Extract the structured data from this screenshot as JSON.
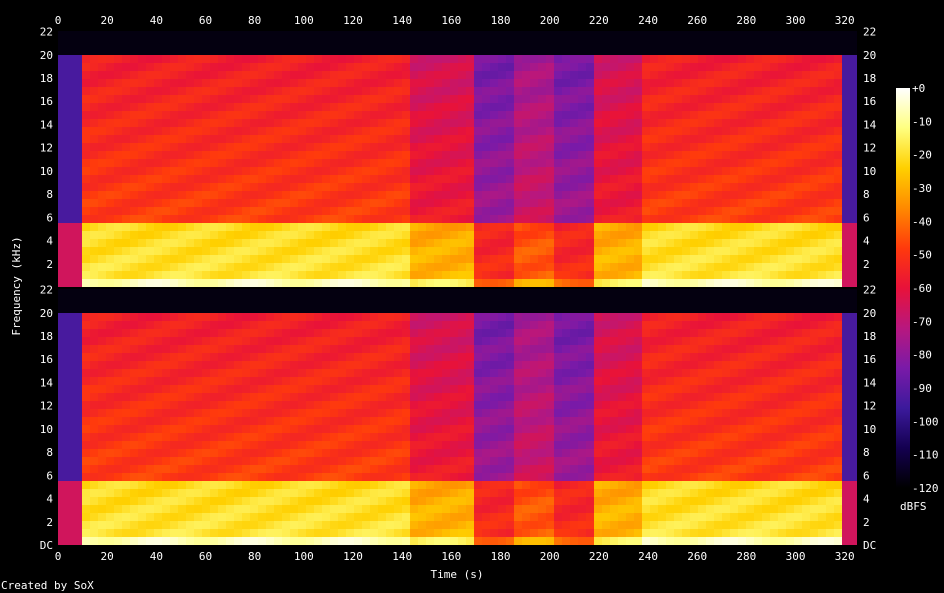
{
  "chart_data": {
    "type": "heatmap",
    "title": "",
    "xlabel": "Time (s)",
    "ylabel": "Frequency (kHz)",
    "x_ticks": [
      "0",
      "20",
      "40",
      "60",
      "80",
      "100",
      "120",
      "140",
      "160",
      "180",
      "200",
      "220",
      "240",
      "260",
      "280",
      "300",
      "320"
    ],
    "x_range": [
      0,
      325
    ],
    "y_ticks_top": [
      "22",
      "20",
      "18",
      "16",
      "14",
      "12",
      "10",
      "8",
      "6",
      "4",
      "2"
    ],
    "y_ticks_bottom": [
      "22",
      "20",
      "18",
      "16",
      "14",
      "12",
      "10",
      "8",
      "6",
      "4",
      "2",
      "DC"
    ],
    "y_range_khz": [
      0,
      22.05
    ],
    "channels": 2,
    "colorbar": {
      "label": "dBFS",
      "ticks": [
        "+0",
        "-10",
        "-20",
        "-30",
        "-40",
        "-50",
        "-60",
        "-70",
        "-80",
        "-90",
        "-100",
        "-110",
        "-120"
      ],
      "range": [
        -120,
        0
      ],
      "colors": [
        "#000000",
        "#140050",
        "#3c1a9c",
        "#7a1aa8",
        "#b8177e",
        "#e8123a",
        "#ff3a0c",
        "#ff8a00",
        "#ffd000",
        "#ffff80",
        "#ffffff"
      ]
    },
    "signal_cutoff_khz": 20,
    "segments": [
      {
        "start": 0,
        "end": 8,
        "level": "low"
      },
      {
        "start": 8,
        "end": 140,
        "level": "loud"
      },
      {
        "start": 140,
        "end": 168,
        "level": "medium"
      },
      {
        "start": 168,
        "end": 185,
        "level": "quiet"
      },
      {
        "start": 185,
        "end": 200,
        "level": "medium-quiet"
      },
      {
        "start": 200,
        "end": 218,
        "level": "quiet"
      },
      {
        "start": 218,
        "end": 235,
        "level": "medium"
      },
      {
        "start": 235,
        "end": 278,
        "level": "loud"
      },
      {
        "start": 278,
        "end": 318,
        "level": "loud"
      },
      {
        "start": 318,
        "end": 325,
        "level": "low"
      }
    ]
  },
  "footer": {
    "credit": "Created by SoX"
  }
}
